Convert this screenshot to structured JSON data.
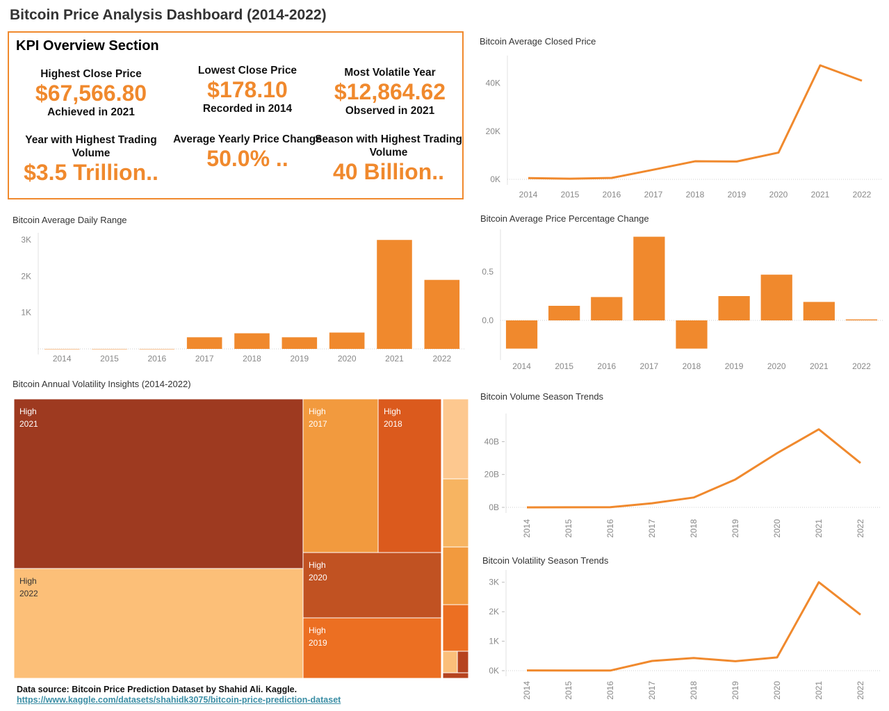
{
  "title": "Bitcoin Price Analysis Dashboard (2014-2022)",
  "kpi": {
    "heading": "KPI Overview Section",
    "items": [
      {
        "label": "Highest Close Price",
        "value": "$67,566.80",
        "sub": "Achieved in 2021"
      },
      {
        "label": "Lowest Close Price",
        "value": "$178.10",
        "sub": "Recorded in 2014"
      },
      {
        "label": "Most Volatile Year",
        "value": "$12,864.62",
        "sub": "Observed in 2021"
      },
      {
        "label": "Year with Highest Trading Volume",
        "value": "$3.5 Trillion..",
        "sub": ""
      },
      {
        "label": "Average Yearly Price Change",
        "value": "50.0% ..",
        "sub": ""
      },
      {
        "label": "Season with Highest Trading Volume",
        "value": "40 Billion..",
        "sub": ""
      }
    ]
  },
  "colors": {
    "accent": "#f0892d",
    "text": "#333333",
    "link": "#3b8ea5"
  },
  "chart_data": [
    {
      "id": "avg_closed",
      "type": "line",
      "title": "Bitcoin Average Closed Price",
      "categories": [
        "2014",
        "2015",
        "2016",
        "2017",
        "2018",
        "2019",
        "2020",
        "2021",
        "2022"
      ],
      "values": [
        500,
        270,
        570,
        4000,
        7500,
        7400,
        11100,
        47400,
        41000
      ],
      "ylim": [
        0,
        50000
      ],
      "yticks": [
        0,
        20000,
        40000
      ],
      "ytick_labels": [
        "0K",
        "20K",
        "40K"
      ],
      "grid": false
    },
    {
      "id": "daily_range",
      "type": "bar",
      "title": "Bitcoin Average Daily Range",
      "categories": [
        "2014",
        "2015",
        "2016",
        "2017",
        "2018",
        "2019",
        "2020",
        "2021",
        "2022"
      ],
      "values": [
        0,
        0,
        0,
        320,
        430,
        320,
        450,
        3000,
        1900
      ],
      "ylim": [
        0,
        3100
      ],
      "yticks": [
        1000,
        2000,
        3000
      ],
      "ytick_labels": [
        "1K",
        "2K",
        "3K"
      ]
    },
    {
      "id": "pct_change",
      "type": "bar",
      "title": "Bitcoin Average Price Percentage Change",
      "categories": [
        "2014",
        "2015",
        "2016",
        "2017",
        "2018",
        "2019",
        "2020",
        "2021",
        "2022"
      ],
      "values": [
        -0.29,
        0.15,
        0.24,
        0.86,
        -0.29,
        0.25,
        0.47,
        0.19,
        0.01
      ],
      "ylim": [
        -0.35,
        0.9
      ],
      "yticks": [
        0.0,
        0.5
      ],
      "ytick_labels": [
        "0.0",
        "0.5"
      ]
    },
    {
      "id": "treemap",
      "type": "treemap",
      "title": "Bitcoin Annual Volatility Insights (2014-2022)",
      "labels": [
        "High\n2021",
        "High\n2022",
        "High\n2017",
        "High\n2018",
        "High\n2020",
        "High\n2019"
      ],
      "cells": [
        {
          "label": "High",
          "year": "2021",
          "color": "#9e3a20"
        },
        {
          "label": "High",
          "year": "2022",
          "color": "#fcbf78"
        },
        {
          "label": "High",
          "year": "2017",
          "color": "#f29a3e"
        },
        {
          "label": "High",
          "year": "2018",
          "color": "#db5a1d"
        },
        {
          "label": "High",
          "year": "2020",
          "color": "#c15222"
        },
        {
          "label": "High",
          "year": "2019",
          "color": "#ec6f22"
        },
        {
          "label": "",
          "year": "",
          "color": "#fdc88f"
        },
        {
          "label": "",
          "year": "",
          "color": "#f7b461"
        },
        {
          "label": "",
          "year": "",
          "color": "#f29a3e"
        },
        {
          "label": "",
          "year": "",
          "color": "#ec6f22"
        },
        {
          "label": "",
          "year": "",
          "color": "#fbbf7a"
        },
        {
          "label": "",
          "year": "",
          "color": "#b6431f"
        },
        {
          "label": "",
          "year": "",
          "color": "#b6431f"
        }
      ]
    },
    {
      "id": "volume_season",
      "type": "line",
      "title": "Bitcoin Volume Season Trends",
      "categories": [
        "2014",
        "2015",
        "2016",
        "2017",
        "2018",
        "2019",
        "2020",
        "2021",
        "2022"
      ],
      "values": [
        0.02,
        0.04,
        0.1,
        2.5,
        6,
        17,
        33,
        47.5,
        27
      ],
      "ylim": [
        0,
        55
      ],
      "yticks": [
        0,
        20,
        40
      ],
      "ytick_labels": [
        "0B",
        "20B",
        "40B"
      ]
    },
    {
      "id": "volatility_season",
      "type": "line",
      "title": "Bitcoin Volatility Season Trends",
      "categories": [
        "2014",
        "2015",
        "2016",
        "2017",
        "2018",
        "2019",
        "2020",
        "2021",
        "2022"
      ],
      "values": [
        10,
        5,
        5,
        330,
        430,
        320,
        450,
        3000,
        1900
      ],
      "ylim": [
        0,
        3300
      ],
      "yticks": [
        0,
        1000,
        2000,
        3000
      ],
      "ytick_labels": [
        "0K",
        "1K",
        "2K",
        "3K"
      ]
    }
  ],
  "source": {
    "text": "Data source: Bitcoin Price Prediction Dataset by Shahid Ali. Kaggle.",
    "link": "https://www.kaggle.com/datasets/shahidk3075/bitcoin-price-prediction-dataset"
  }
}
